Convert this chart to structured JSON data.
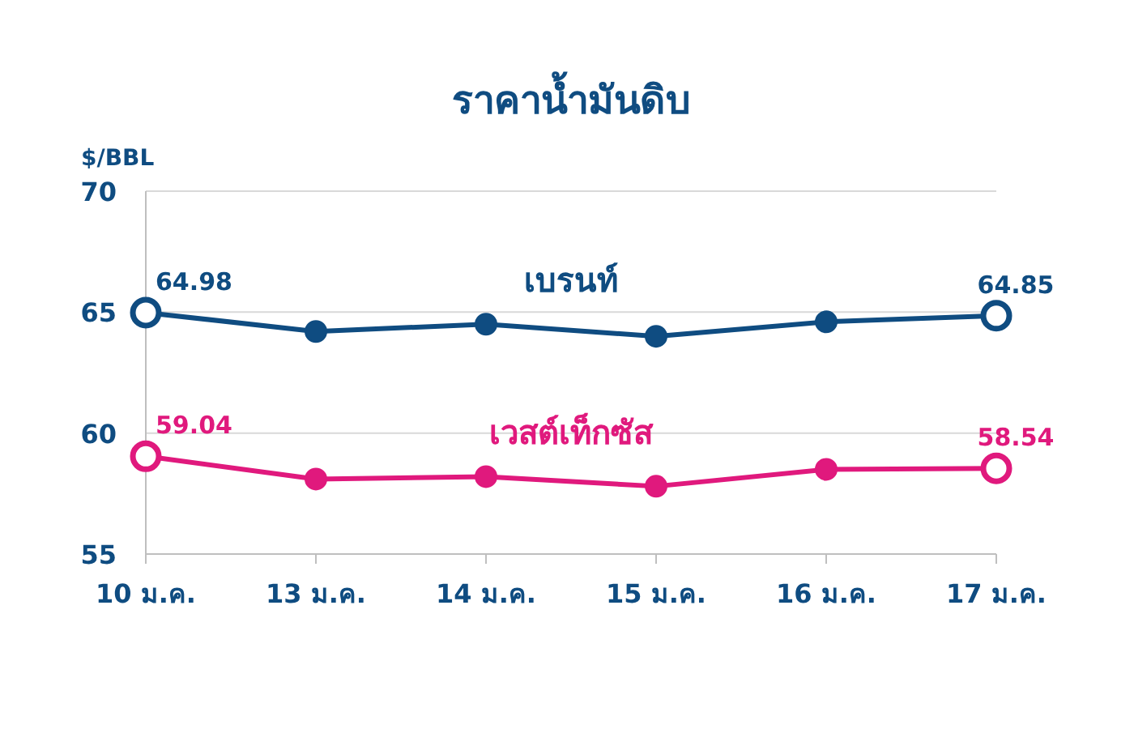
{
  "chart_data": {
    "type": "line",
    "title": "ราคาน้ำมันดิบ",
    "ylabel": "$/BBL",
    "categories": [
      "10 ม.ค.",
      "13 ม.ค.",
      "14 ม.ค.",
      "15 ม.ค.",
      "16 ม.ค.",
      "17 ม.ค."
    ],
    "series": [
      {
        "name": "เบรนท์",
        "color": "#0f4c81",
        "values": [
          64.98,
          64.2,
          64.5,
          64.0,
          64.6,
          64.85
        ],
        "value_labels": [
          "64.98",
          null,
          null,
          null,
          null,
          "64.85"
        ]
      },
      {
        "name": "เวสต์เท็กซัส",
        "color": "#e0197d",
        "values": [
          59.04,
          58.1,
          58.2,
          57.8,
          58.5,
          58.54
        ],
        "value_labels": [
          "59.04",
          null,
          null,
          null,
          null,
          "58.54"
        ]
      }
    ],
    "ylim": [
      55,
      70
    ],
    "yticks": [
      55,
      60,
      65,
      70
    ],
    "grid": "y",
    "legend": false,
    "marker": "circle",
    "line_style": "solid"
  }
}
